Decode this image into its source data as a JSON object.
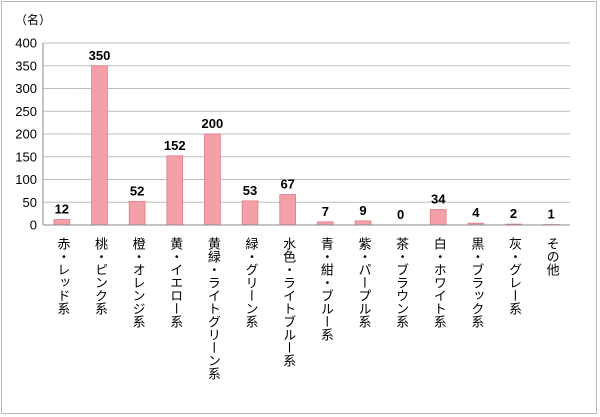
{
  "chart_data": {
    "type": "bar",
    "unit_label": "（名）",
    "categories": [
      "赤・レッド系",
      "桃・ピンク系",
      "橙・オレンジ系",
      "黄・イエロー系",
      "黄緑・ライトグリーン系",
      "緑・グリーン系",
      "水色・ライトブルー系",
      "青・紺・ブルー系",
      "紫・パープル系",
      "茶・ブラウン系",
      "白・ホワイト系",
      "黒・ブラック系",
      "灰・グレー系",
      "その他"
    ],
    "values": [
      12,
      350,
      52,
      152,
      200,
      53,
      67,
      7,
      9,
      0,
      34,
      4,
      2,
      1
    ],
    "ylim": [
      0,
      400
    ],
    "yticks": [
      0,
      50,
      100,
      150,
      200,
      250,
      300,
      350,
      400
    ],
    "grid": true,
    "legend": "none",
    "bar_color": "#f4a0a8",
    "bar_edge_color": "#e07a86"
  }
}
